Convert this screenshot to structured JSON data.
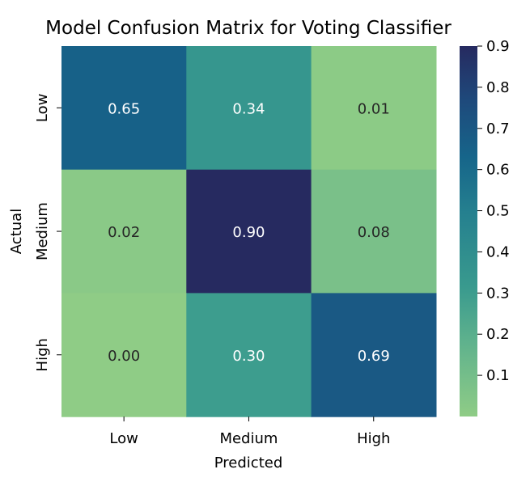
{
  "chart_data": {
    "type": "heatmap",
    "title": "Model Confusion Matrix for Voting Classifier",
    "xlabel": "Predicted",
    "ylabel": "Actual",
    "x_categories": [
      "Low",
      "Medium",
      "High"
    ],
    "y_categories": [
      "Low",
      "Medium",
      "High"
    ],
    "values": [
      [
        0.65,
        0.34,
        0.01
      ],
      [
        0.02,
        0.9,
        0.08
      ],
      [
        0.0,
        0.3,
        0.69
      ]
    ],
    "value_format": "0.00",
    "colormap": "crest",
    "colorbar": {
      "vmin": 0.0,
      "vmax": 0.9,
      "ticks": [
        "0.1",
        "0.2",
        "0.3",
        "0.4",
        "0.5",
        "0.6",
        "0.7",
        "0.8",
        "0.9"
      ]
    },
    "annotation_colors": {
      "light": "#ffffff",
      "dark": "#262626"
    }
  }
}
